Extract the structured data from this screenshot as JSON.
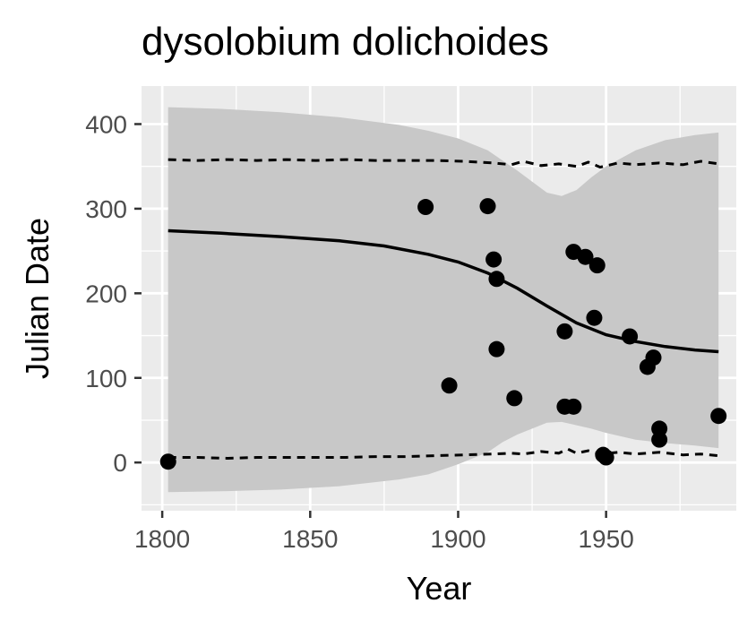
{
  "chart_data": {
    "type": "scatter",
    "title": "dysolobium dolichoides",
    "xlabel": "Year",
    "ylabel": "Julian Date",
    "xlim": [
      1793,
      1994
    ],
    "ylim": [
      -57,
      445
    ],
    "x_ticks": [
      1800,
      1850,
      1900,
      1950
    ],
    "y_ticks": [
      0,
      100,
      200,
      300,
      400
    ],
    "grid": true,
    "panel_background": "#ebebeb",
    "colors": {
      "points": "#000000",
      "fit_line": "#000000",
      "ribbon": "#c8c8c8",
      "dashed_bounds": "#000000",
      "grid": "#ffffff"
    },
    "points": [
      {
        "x": 1802,
        "y": 1
      },
      {
        "x": 1889,
        "y": 302
      },
      {
        "x": 1897,
        "y": 91
      },
      {
        "x": 1910,
        "y": 303
      },
      {
        "x": 1912,
        "y": 240
      },
      {
        "x": 1913,
        "y": 217
      },
      {
        "x": 1913,
        "y": 134
      },
      {
        "x": 1919,
        "y": 76
      },
      {
        "x": 1936,
        "y": 155
      },
      {
        "x": 1936,
        "y": 66
      },
      {
        "x": 1939,
        "y": 66
      },
      {
        "x": 1939,
        "y": 249
      },
      {
        "x": 1943,
        "y": 243
      },
      {
        "x": 1946,
        "y": 171
      },
      {
        "x": 1947,
        "y": 233
      },
      {
        "x": 1949,
        "y": 9
      },
      {
        "x": 1950,
        "y": 6
      },
      {
        "x": 1958,
        "y": 149
      },
      {
        "x": 1964,
        "y": 113
      },
      {
        "x": 1966,
        "y": 124
      },
      {
        "x": 1968,
        "y": 40
      },
      {
        "x": 1968,
        "y": 27
      },
      {
        "x": 1988,
        "y": 55
      }
    ],
    "fit_line": {
      "x": [
        1802,
        1820,
        1840,
        1860,
        1875,
        1890,
        1900,
        1910,
        1920,
        1930,
        1940,
        1950,
        1960,
        1970,
        1980,
        1988
      ],
      "y": [
        274,
        271,
        267,
        262,
        256,
        246,
        237,
        224,
        206,
        185,
        165,
        151,
        143,
        137,
        133,
        131
      ]
    },
    "ribbon": {
      "x": [
        1802,
        1820,
        1840,
        1860,
        1880,
        1890,
        1900,
        1910,
        1915,
        1920,
        1925,
        1930,
        1935,
        1940,
        1945,
        1950,
        1960,
        1970,
        1980,
        1988
      ],
      "upper": [
        420,
        418,
        414,
        408,
        399,
        392,
        383,
        369,
        357,
        345,
        332,
        319,
        315,
        322,
        337,
        350,
        369,
        381,
        387,
        390
      ],
      "lower": [
        -35,
        -34,
        -32,
        -28,
        -20,
        -14,
        -2,
        12,
        24,
        33,
        40,
        47,
        48,
        44,
        40,
        35,
        27,
        23,
        20,
        17
      ]
    },
    "upper_bound": {
      "x": [
        1802,
        1812,
        1822,
        1832,
        1842,
        1852,
        1862,
        1872,
        1882,
        1892,
        1902,
        1912,
        1918,
        1922,
        1928,
        1934,
        1940,
        1944,
        1948,
        1954,
        1960,
        1968,
        1976,
        1982,
        1988
      ],
      "y": [
        358,
        357,
        358,
        357,
        358,
        357,
        358,
        357,
        357,
        357,
        356,
        354,
        352,
        356,
        351,
        353,
        350,
        355,
        349,
        354,
        352,
        354,
        352,
        356,
        353
      ]
    },
    "lower_bound": {
      "x": [
        1802,
        1812,
        1822,
        1832,
        1842,
        1852,
        1862,
        1872,
        1882,
        1892,
        1902,
        1912,
        1918,
        1922,
        1928,
        1934,
        1937,
        1940,
        1944,
        1948,
        1954,
        1960,
        1968,
        1976,
        1982,
        1988
      ],
      "y": [
        6,
        6,
        5,
        6,
        6,
        6,
        6,
        7,
        7,
        8,
        9,
        10,
        11,
        10,
        13,
        11,
        16,
        11,
        14,
        10,
        12,
        10,
        12,
        9,
        10,
        8
      ]
    }
  }
}
